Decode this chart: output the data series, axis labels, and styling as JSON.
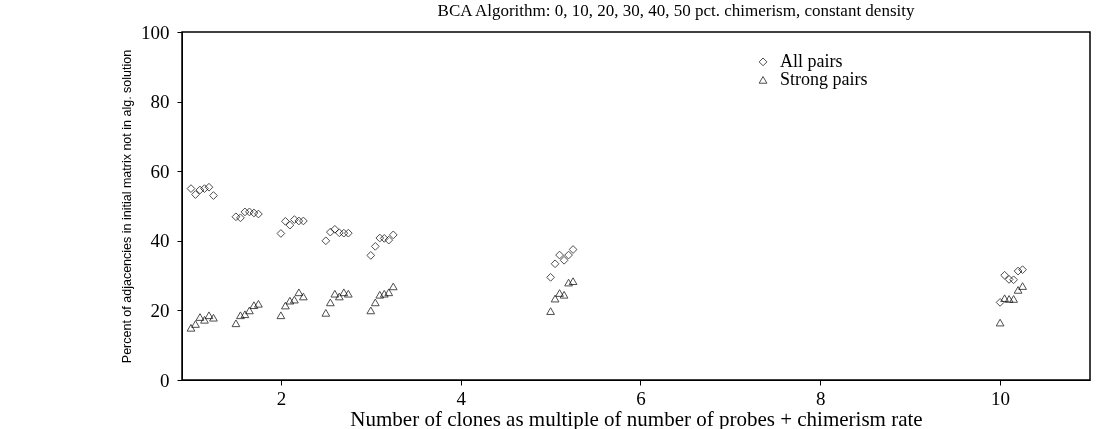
{
  "chart_data": {
    "type": "scatter",
    "title": "BCA Algorithm: 0, 10, 20, 30, 40, 50 pct. chimerism, constant density",
    "xlabel": "Number of clones as multiple of number of probes + chimerism rate",
    "ylabel": "Percent of adjacencies in initial matrix not in alg. solution",
    "xlim": [
      0.9,
      11
    ],
    "ylim": [
      0,
      100
    ],
    "xticks": [
      2,
      4,
      6,
      8,
      10
    ],
    "yticks": [
      0,
      20,
      40,
      60,
      80,
      100
    ],
    "grid": false,
    "legend": "top right",
    "x": [
      1,
      1.05,
      1.1,
      1.15,
      1.2,
      1.25,
      1.5,
      1.55,
      1.6,
      1.65,
      1.7,
      1.75,
      2,
      2.05,
      2.1,
      2.15,
      2.2,
      2.25,
      2.5,
      2.55,
      2.6,
      2.65,
      2.7,
      2.75,
      3,
      3.05,
      3.1,
      3.15,
      3.2,
      3.25,
      5,
      5.05,
      5.1,
      5.15,
      5.2,
      5.25,
      10,
      10.05,
      10.1,
      10.15,
      10.2,
      10.25
    ],
    "series": [
      {
        "name": "All pairs",
        "color": "#000000",
        "marker": "diamond",
        "values": [
          55.0,
          53.3,
          54.6,
          55.0,
          55.4,
          53.0,
          46.9,
          46.6,
          48.3,
          48.3,
          48.0,
          47.7,
          42.1,
          45.6,
          44.5,
          46.1,
          45.7,
          45.7,
          40.0,
          42.5,
          43.3,
          42.3,
          42.2,
          42.2,
          35.8,
          38.4,
          40.8,
          40.7,
          40.2,
          41.7,
          29.5,
          33.4,
          35.9,
          34.4,
          35.9,
          37.5,
          22.3,
          30.1,
          28.9,
          28.8,
          31.3,
          31.7
        ]
      },
      {
        "name": "Strong pairs",
        "color": "#000000",
        "marker": "triangle",
        "values": [
          15.0,
          16.1,
          18.1,
          17.3,
          18.6,
          17.9,
          16.3,
          18.6,
          18.9,
          20.0,
          21.5,
          21.9,
          18.6,
          21.4,
          22.8,
          23.1,
          25.2,
          24.0,
          19.3,
          22.3,
          24.8,
          24.0,
          25.2,
          24.8,
          20.0,
          22.3,
          24.5,
          24.8,
          25.2,
          26.9,
          19.8,
          23.4,
          25.0,
          24.5,
          28.0,
          28.4,
          16.5,
          23.5,
          23.3,
          23.3,
          25.9,
          27.0
        ]
      }
    ]
  }
}
